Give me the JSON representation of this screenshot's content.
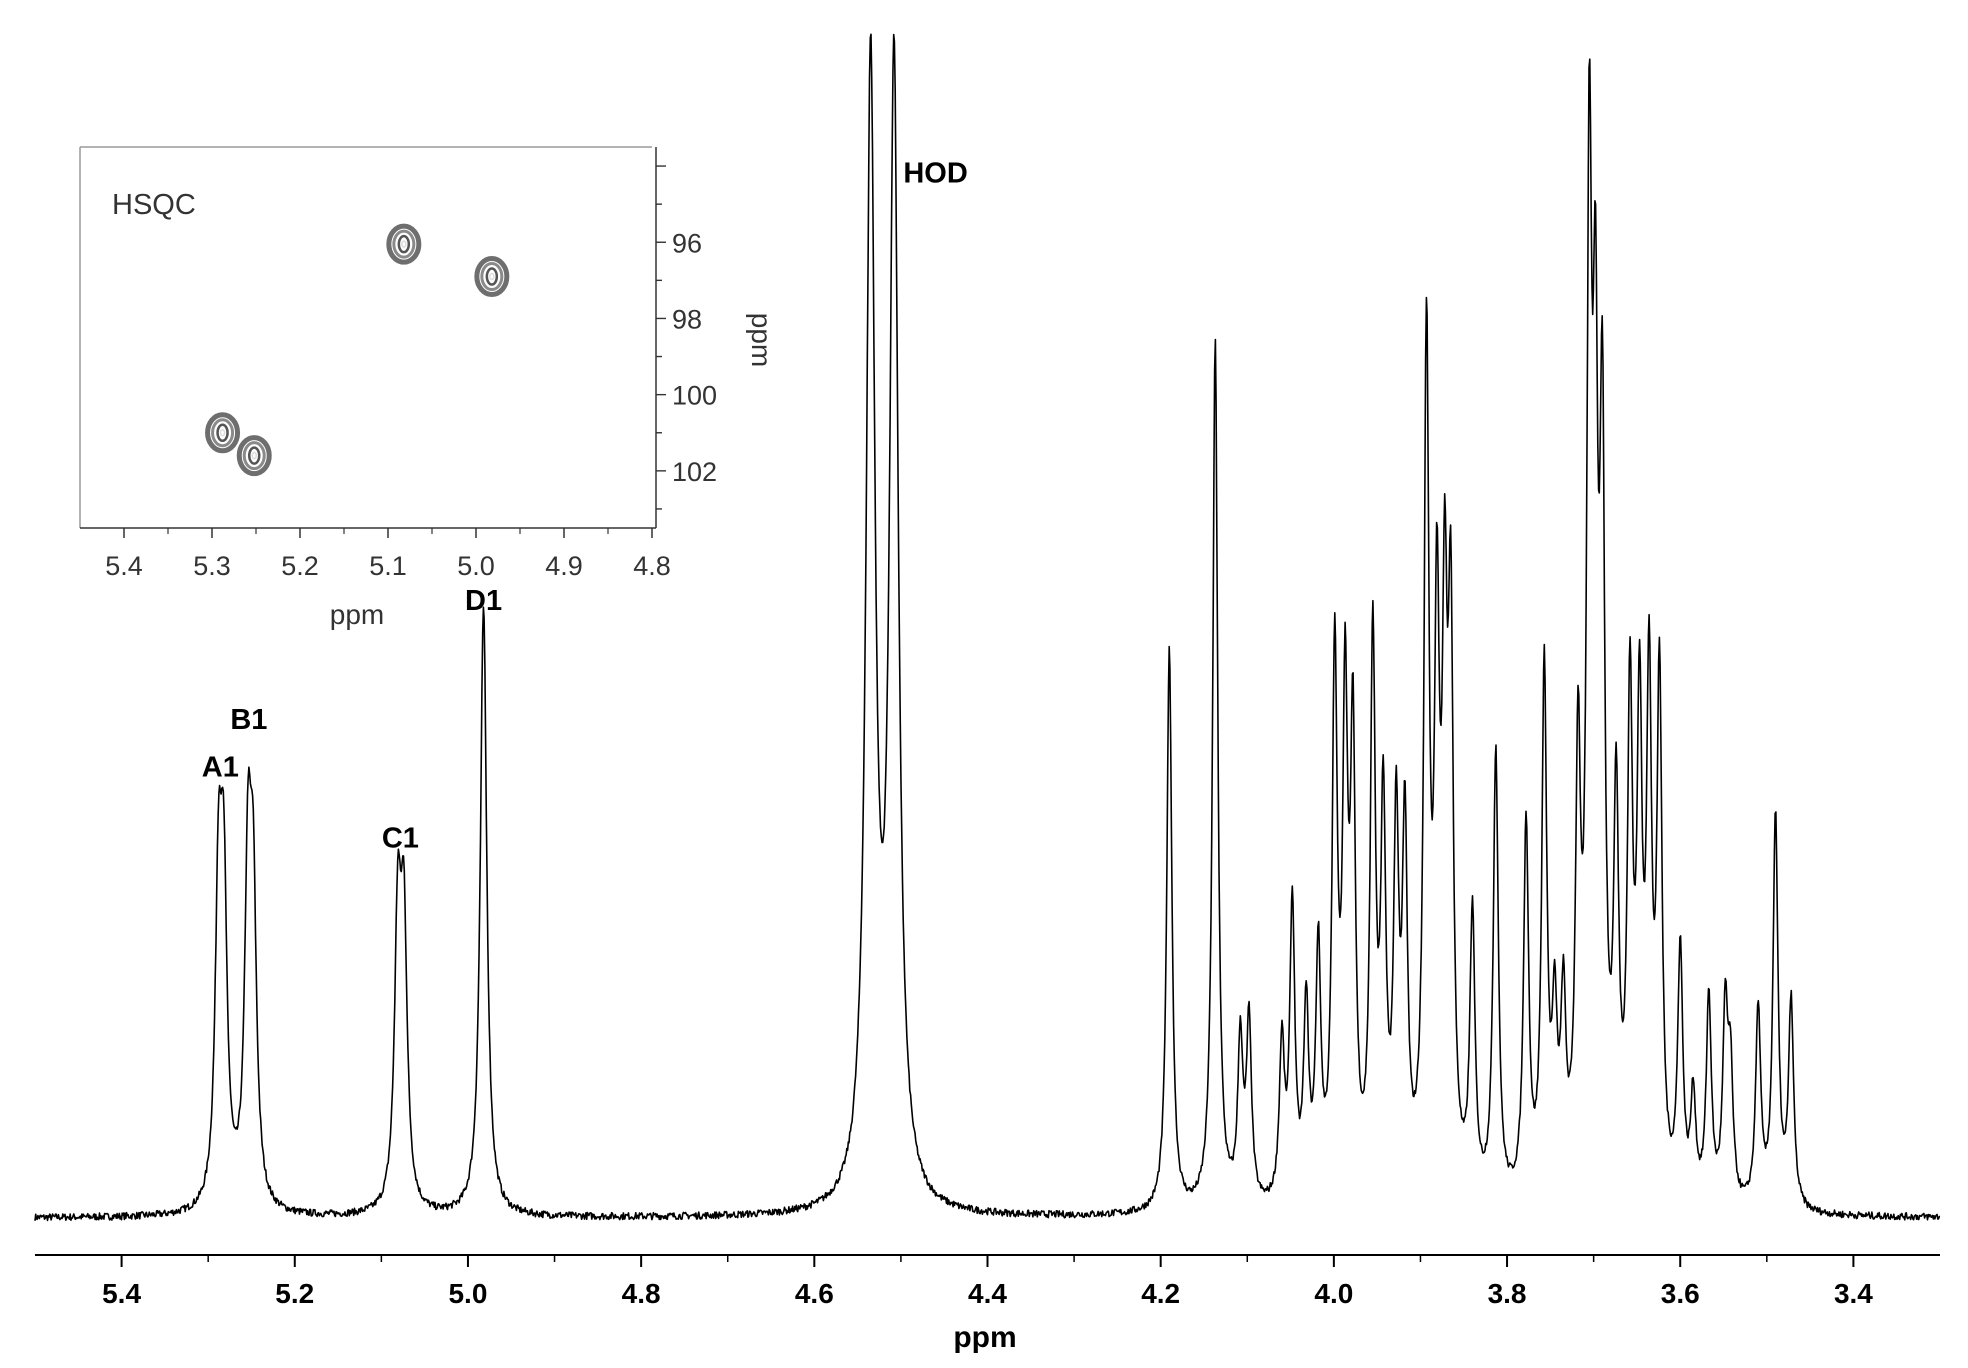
{
  "chart_data": [
    {
      "type": "line",
      "xlabel": "ppm",
      "xlim": [
        5.5,
        3.3
      ],
      "x_reversed": true,
      "x_ticks": [
        5.4,
        5.2,
        5.0,
        4.8,
        4.6,
        4.4,
        4.2,
        4.0,
        3.8,
        3.6,
        3.4
      ],
      "x_tick_labels": [
        "5.4",
        "5.2",
        "5.0",
        "4.8",
        "4.6",
        "4.4",
        "4.2",
        "4.0",
        "3.8",
        "3.6",
        "3.4"
      ],
      "ylim": [
        0,
        1.0
      ],
      "grid": false,
      "annotations": [
        {
          "label": "A1",
          "x": 5.286,
          "y": 0.36
        },
        {
          "label": "B1",
          "x": 5.253,
          "y": 0.4
        },
        {
          "label": "C1",
          "x": 5.078,
          "y": 0.3
        },
        {
          "label": "D1",
          "x": 4.982,
          "y": 0.5
        },
        {
          "label": "HOD",
          "x": 4.46,
          "y": 0.86
        }
      ],
      "peaks": [
        {
          "x": 5.288,
          "y": 0.355
        },
        {
          "x": 5.282,
          "y": 0.35
        },
        {
          "x": 5.254,
          "y": 0.37
        },
        {
          "x": 5.248,
          "y": 0.345
        },
        {
          "x": 5.081,
          "y": 0.305
        },
        {
          "x": 5.074,
          "y": 0.3
        },
        {
          "x": 4.982,
          "y": 0.515
        },
        {
          "x": 4.535,
          "y": 1.0
        },
        {
          "x": 4.508,
          "y": 1.0
        },
        {
          "x": 4.19,
          "y": 0.48
        },
        {
          "x": 4.137,
          "y": 0.74
        },
        {
          "x": 4.108,
          "y": 0.17
        },
        {
          "x": 4.098,
          "y": 0.18
        },
        {
          "x": 4.06,
          "y": 0.165
        },
        {
          "x": 4.048,
          "y": 0.28
        },
        {
          "x": 4.032,
          "y": 0.2
        },
        {
          "x": 4.018,
          "y": 0.25
        },
        {
          "x": 3.999,
          "y": 0.51
        },
        {
          "x": 3.987,
          "y": 0.5
        },
        {
          "x": 3.978,
          "y": 0.46
        },
        {
          "x": 3.955,
          "y": 0.52
        },
        {
          "x": 3.943,
          "y": 0.39
        },
        {
          "x": 3.928,
          "y": 0.38
        },
        {
          "x": 3.918,
          "y": 0.37
        },
        {
          "x": 3.893,
          "y": 0.78
        },
        {
          "x": 3.881,
          "y": 0.59
        },
        {
          "x": 3.872,
          "y": 0.61
        },
        {
          "x": 3.865,
          "y": 0.58
        },
        {
          "x": 3.84,
          "y": 0.27
        },
        {
          "x": 3.813,
          "y": 0.4
        },
        {
          "x": 3.778,
          "y": 0.345
        },
        {
          "x": 3.757,
          "y": 0.48
        },
        {
          "x": 3.745,
          "y": 0.215
        },
        {
          "x": 3.735,
          "y": 0.22
        },
        {
          "x": 3.718,
          "y": 0.45
        },
        {
          "x": 3.705,
          "y": 0.98
        },
        {
          "x": 3.698,
          "y": 0.86
        },
        {
          "x": 3.69,
          "y": 0.76
        },
        {
          "x": 3.674,
          "y": 0.4
        },
        {
          "x": 3.658,
          "y": 0.49
        },
        {
          "x": 3.647,
          "y": 0.49
        },
        {
          "x": 3.636,
          "y": 0.51
        },
        {
          "x": 3.624,
          "y": 0.49
        },
        {
          "x": 3.6,
          "y": 0.24
        },
        {
          "x": 3.585,
          "y": 0.12
        },
        {
          "x": 3.567,
          "y": 0.195
        },
        {
          "x": 3.548,
          "y": 0.2
        },
        {
          "x": 3.542,
          "y": 0.16
        },
        {
          "x": 3.51,
          "y": 0.185
        },
        {
          "x": 3.49,
          "y": 0.345
        },
        {
          "x": 3.472,
          "y": 0.19
        }
      ]
    },
    {
      "type": "scatter",
      "title": "HSQC",
      "xlabel": "ppm",
      "ylabel": "ppm",
      "xlim": [
        5.45,
        4.8
      ],
      "ylim": [
        93.5,
        103.5
      ],
      "x_ticks": [
        5.4,
        5.3,
        5.2,
        5.1,
        5.0,
        4.9,
        4.8
      ],
      "x_tick_labels": [
        "5.4",
        "5.3",
        "5.2",
        "5.1",
        "5.0",
        "4.9",
        "4.8"
      ],
      "y_ticks": [
        96,
        98,
        100,
        102
      ],
      "y_tick_labels": [
        "96",
        "98",
        "100",
        "102"
      ],
      "y_axis_position": "right",
      "grid": false,
      "points": [
        {
          "x": 5.082,
          "y": 96.05
        },
        {
          "x": 4.982,
          "y": 96.9
        },
        {
          "x": 5.288,
          "y": 101.0
        },
        {
          "x": 5.252,
          "y": 101.6
        }
      ]
    }
  ]
}
